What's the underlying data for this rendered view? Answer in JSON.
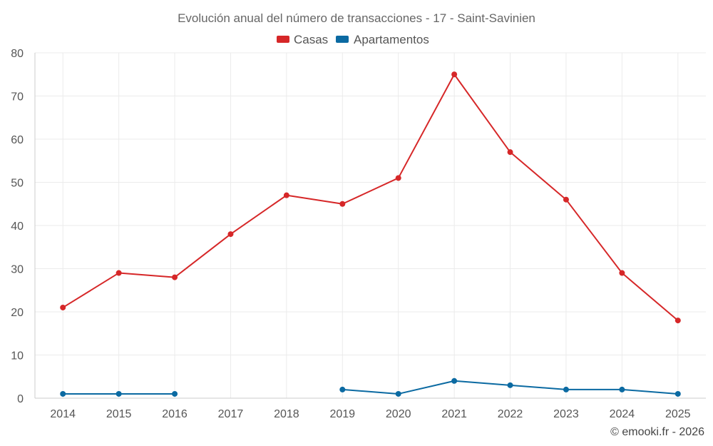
{
  "chart_data": {
    "type": "line",
    "title": "Evolución anual del número de transacciones - 17 - Saint-Savinien",
    "categories": [
      "2014",
      "2015",
      "2016",
      "2017",
      "2018",
      "2019",
      "2020",
      "2021",
      "2022",
      "2023",
      "2024",
      "2025"
    ],
    "ylim": [
      0,
      80
    ],
    "yticks": [
      0,
      10,
      20,
      30,
      40,
      50,
      60,
      70,
      80
    ],
    "grid": true,
    "legend_position": "top-center",
    "series": [
      {
        "name": "Casas",
        "color": "#d62728",
        "values": [
          21,
          29,
          28,
          38,
          47,
          45,
          51,
          75,
          57,
          46,
          29,
          18
        ]
      },
      {
        "name": "Apartamentos",
        "color": "#0b6aa2",
        "values": [
          1,
          1,
          1,
          null,
          null,
          2,
          1,
          4,
          3,
          2,
          2,
          1
        ]
      }
    ]
  },
  "credit": "© emooki.fr - 2026"
}
